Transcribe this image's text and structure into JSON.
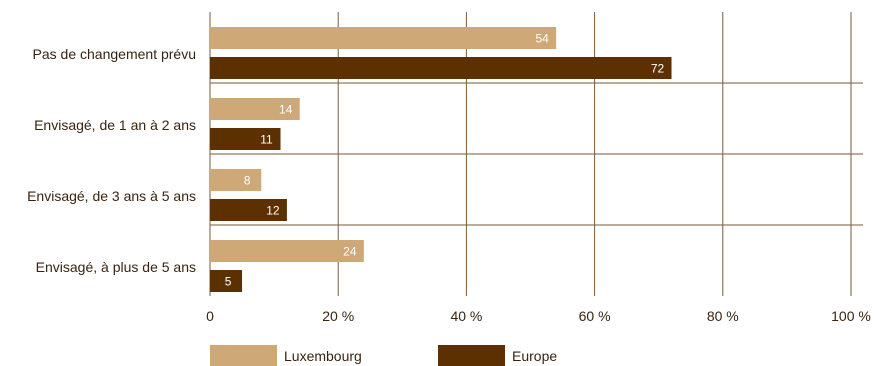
{
  "chart_data": {
    "type": "bar",
    "orientation": "horizontal",
    "categories": [
      "Pas de changement prévu",
      "Envisagé, de 1 an à 2 ans",
      "Envisagé, de 3 ans à 5 ans",
      "Envisagé, à plus de 5 ans"
    ],
    "series": [
      {
        "name": "Luxembourg",
        "values": [
          54,
          14,
          8,
          24
        ],
        "color": "#cfa877"
      },
      {
        "name": "Europe",
        "values": [
          72,
          11,
          12,
          5
        ],
        "color": "#5c3000"
      }
    ],
    "xlim": [
      0,
      100
    ],
    "xticks": [
      0,
      20,
      40,
      60,
      80,
      100
    ],
    "xtick_labels": [
      "0",
      "20 %",
      "40 %",
      "60 %",
      "80 %",
      "100 %"
    ],
    "grid": "vertical",
    "grid_color": "#7a5a3a",
    "legend_position": "bottom"
  }
}
